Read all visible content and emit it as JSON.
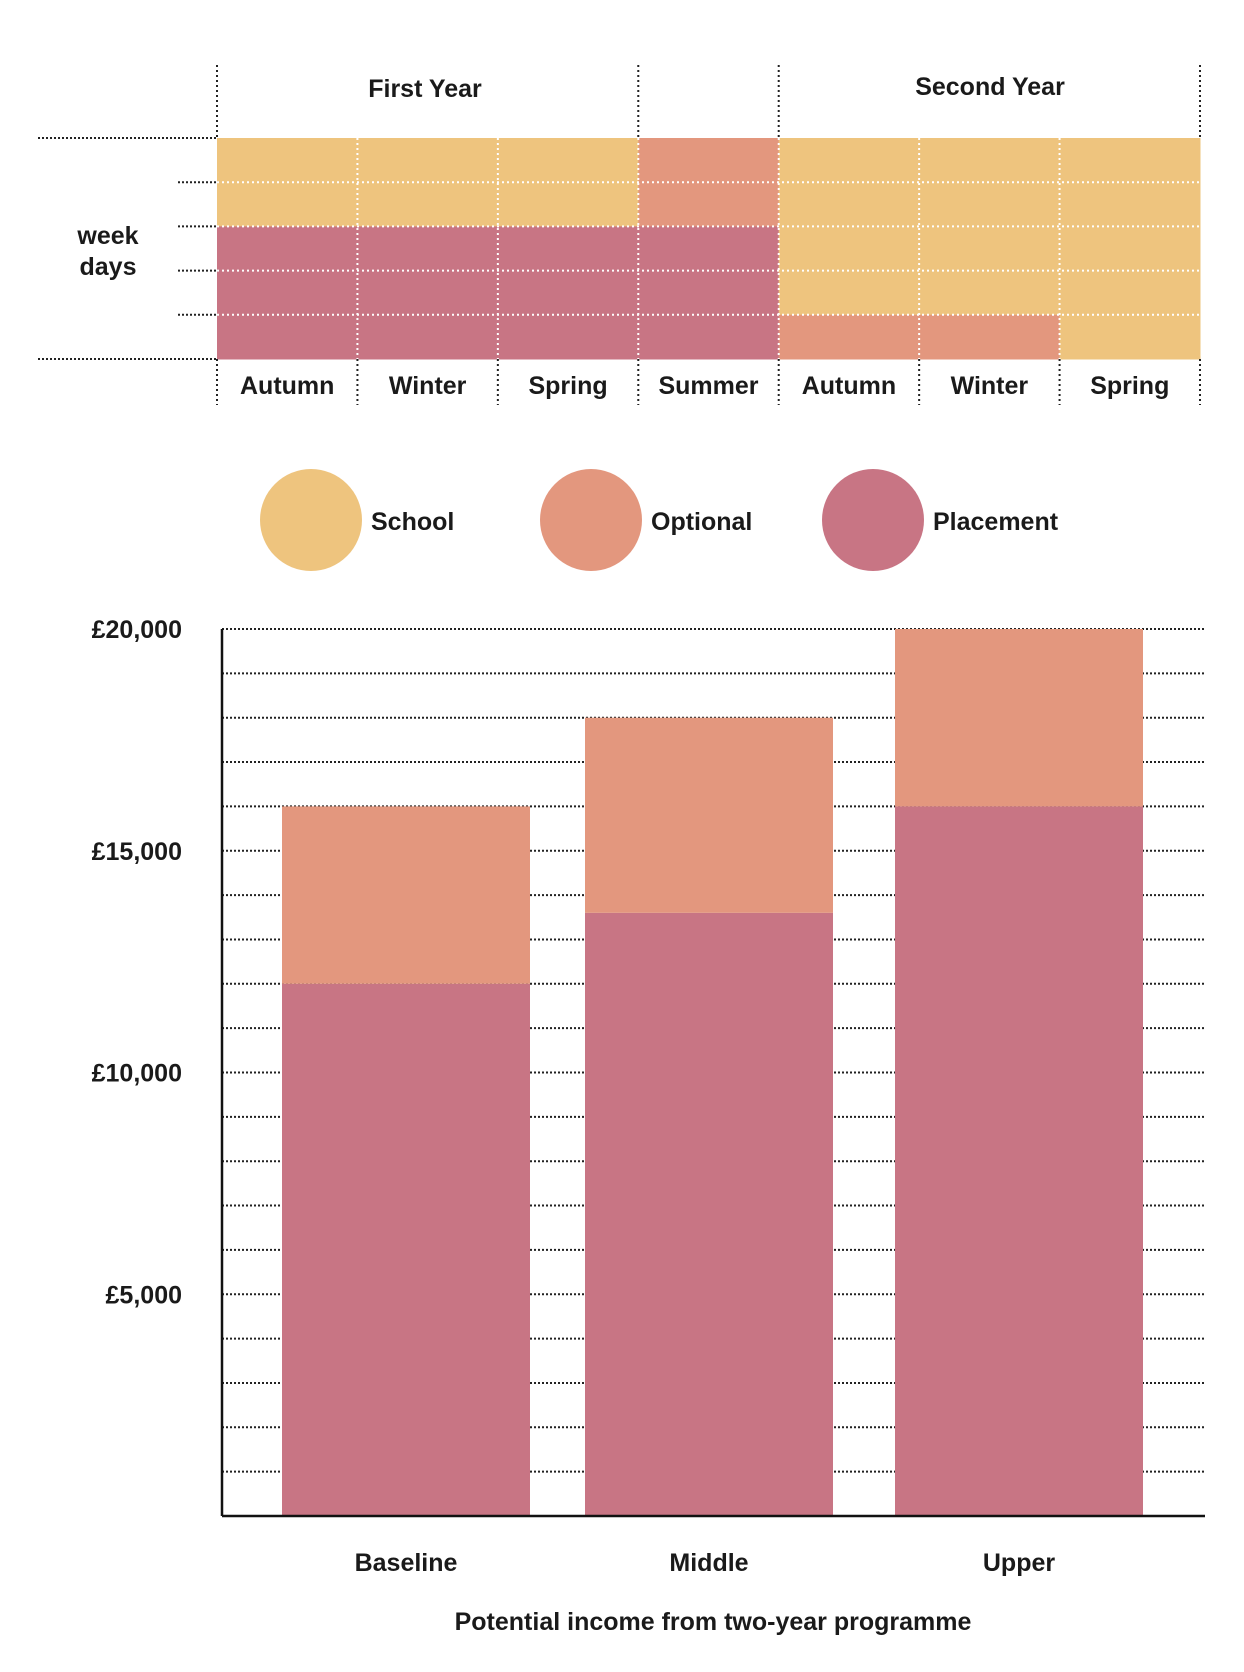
{
  "schedule": {
    "year_labels": [
      "First Year",
      "Second Year"
    ],
    "row_label": [
      "week",
      "days"
    ],
    "terms": [
      "Autumn",
      "Winter",
      "Spring",
      "Summer",
      "Autumn",
      "Winter",
      "Spring"
    ],
    "rows_per_term": 5,
    "grid": [
      [
        "school",
        "school",
        "school",
        "optional",
        "school",
        "school",
        "school"
      ],
      [
        "school",
        "school",
        "school",
        "optional",
        "school",
        "school",
        "school"
      ],
      [
        "placement",
        "placement",
        "placement",
        "placement",
        "school",
        "school",
        "school"
      ],
      [
        "placement",
        "placement",
        "placement",
        "placement",
        "school",
        "school",
        "school"
      ],
      [
        "placement",
        "placement",
        "placement",
        "placement",
        "optional",
        "optional",
        "school"
      ]
    ]
  },
  "legend": [
    {
      "key": "school",
      "label": "School",
      "color": "#eec47e"
    },
    {
      "key": "optional",
      "label": "Optional",
      "color": "#e3977e"
    },
    {
      "key": "placement",
      "label": "Placement",
      "color": "#c87584"
    }
  ],
  "chart_data": {
    "type": "bar",
    "stacked": true,
    "categories": [
      "Baseline",
      "Middle",
      "Upper"
    ],
    "series": [
      {
        "key": "placement",
        "values": [
          12000,
          13600,
          16000
        ],
        "color": "#c87584"
      },
      {
        "key": "optional",
        "values": [
          4000,
          4400,
          4000
        ],
        "color": "#e3977e"
      }
    ],
    "ylim": [
      0,
      20000
    ],
    "yticks": [
      {
        "value": 5000,
        "label": "£5,000"
      },
      {
        "value": 10000,
        "label": "£10,000"
      },
      {
        "value": 15000,
        "label": "£15,000"
      },
      {
        "value": 20000,
        "label": "£20,000"
      }
    ],
    "gridline_step": 1000,
    "grid": true,
    "xlabel": "Potential income from two-year programme",
    "ylabel": "",
    "title": ""
  }
}
